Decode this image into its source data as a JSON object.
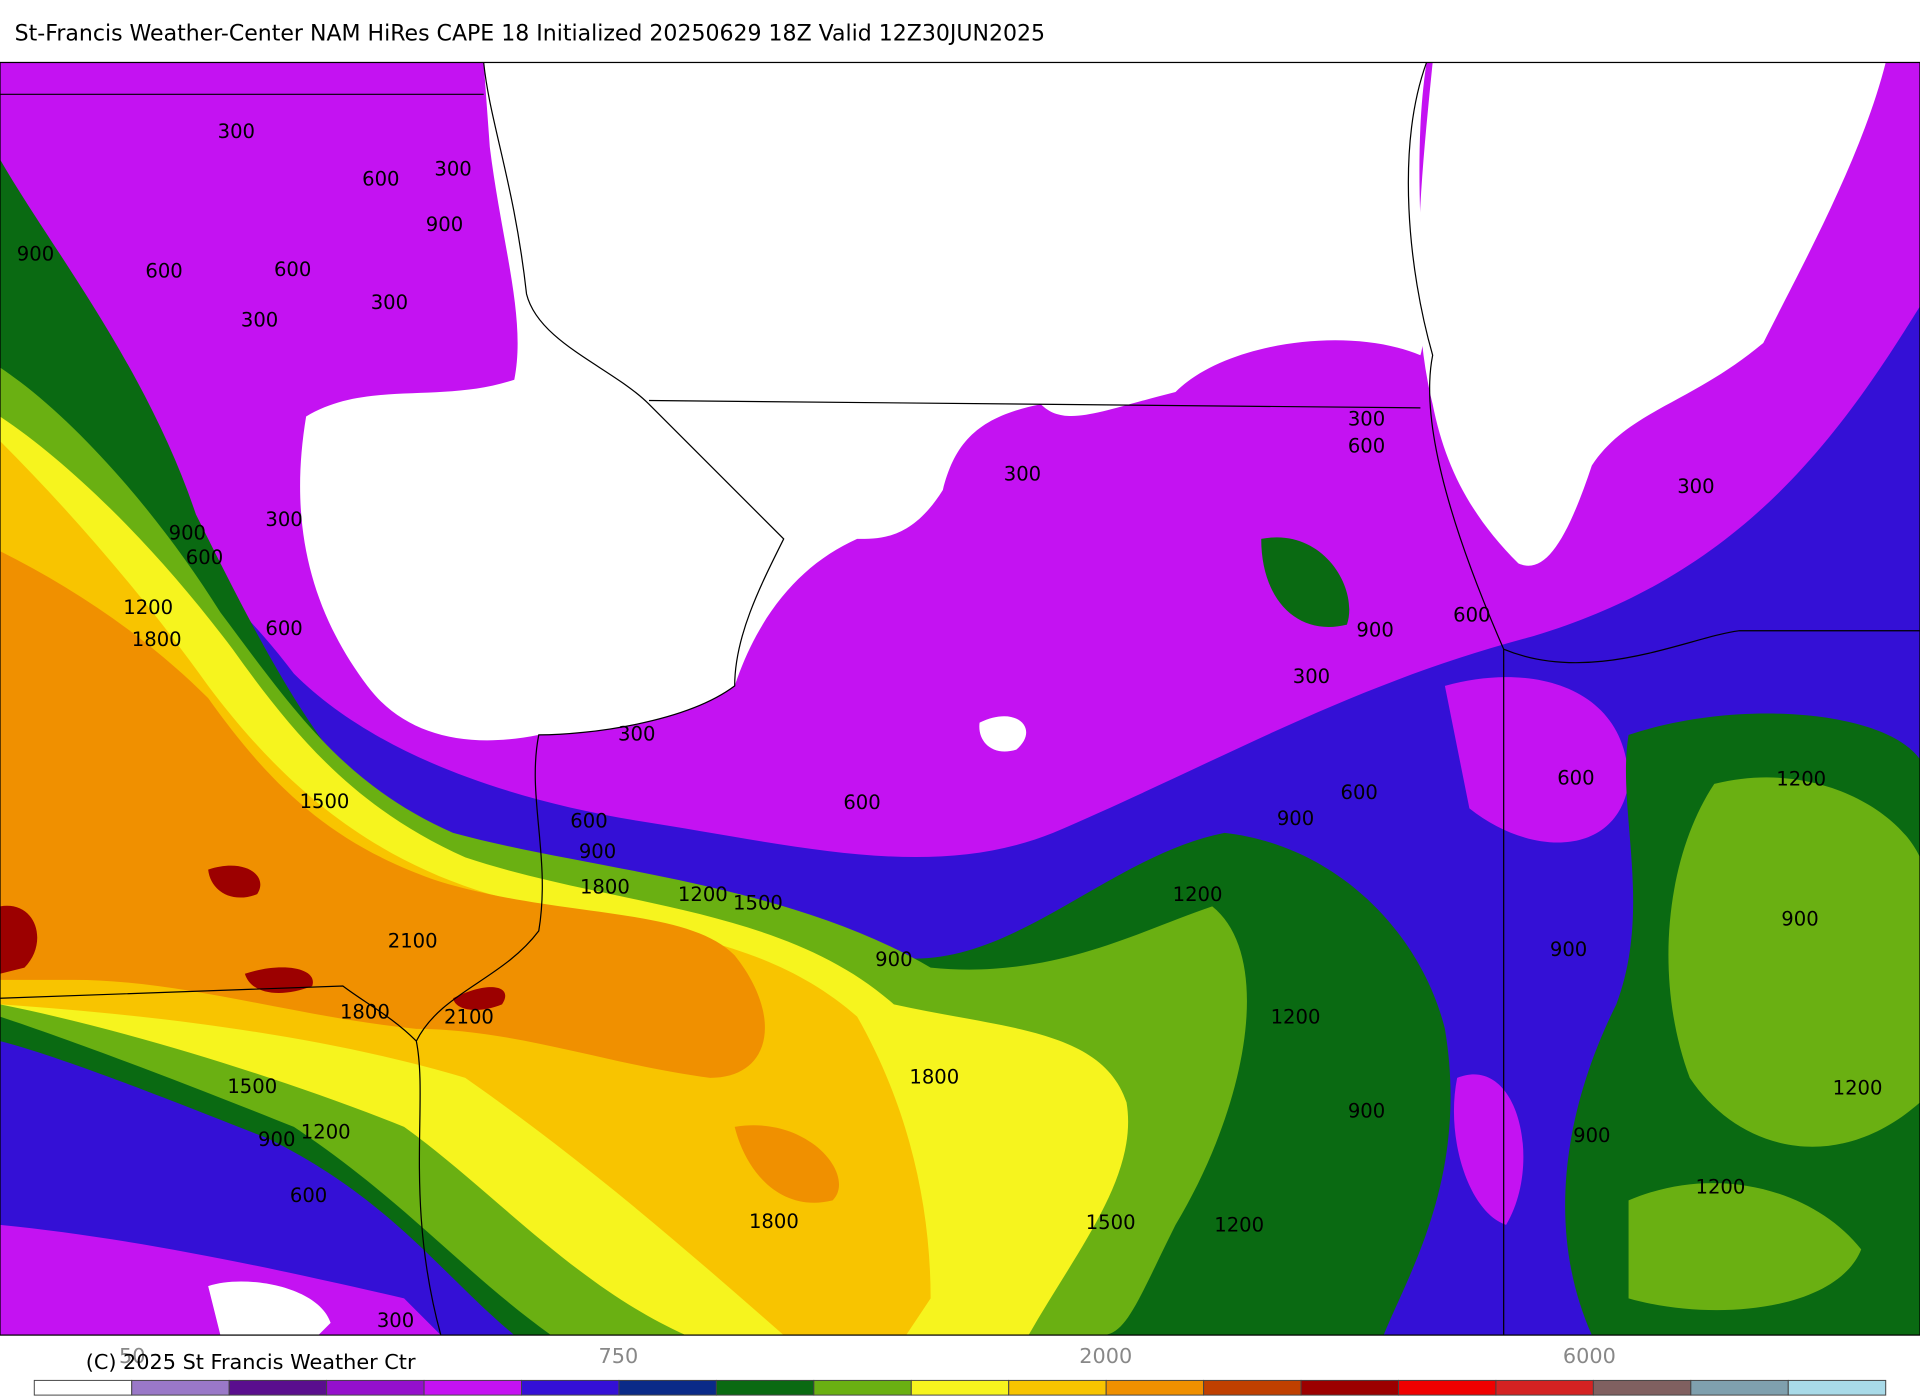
{
  "header": {
    "title": "St-Francis Weather-Center NAM HiRes CAPE  18 Initialized 20250629 18Z Valid 12Z30JUN2025"
  },
  "map": {
    "contour_labels": [
      300,
      300,
      600,
      900,
      900,
      600,
      600,
      300,
      300,
      300,
      600,
      300,
      300,
      300,
      900,
      600,
      1200,
      600,
      900,
      1800,
      600,
      300,
      300,
      600,
      1200,
      600,
      1500,
      600,
      900,
      600,
      900,
      1800,
      1200,
      1500,
      1200,
      900,
      2100,
      900,
      900,
      1800,
      2100,
      1200,
      1800,
      1500,
      1200,
      900,
      1200,
      900,
      900,
      1200,
      600,
      1800,
      1500,
      1200,
      300
    ]
  },
  "colorbar": {
    "labels": [
      "50",
      "750",
      "2000",
      "6000"
    ],
    "colors": [
      "#ffffff",
      "#9a78c8",
      "#5a0e8e",
      "#9410cc",
      "#c412f2",
      "#3410d6",
      "#0a2a88",
      "#0a6a12",
      "#6ab012",
      "#f6f41e",
      "#f8c400",
      "#f09000",
      "#c04000",
      "#9c0000",
      "#f00000",
      "#d42222",
      "#806060",
      "#7fa0ae",
      "#a8dae8"
    ]
  },
  "footer": {
    "copyright": "(C) 2025 St Francis Weather Ctr"
  }
}
